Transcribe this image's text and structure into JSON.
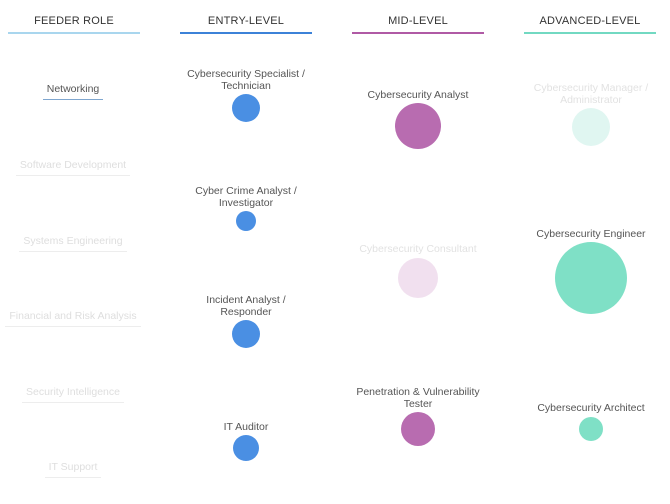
{
  "columns": [
    {
      "title": "FEEDER ROLE",
      "color": "#a9d6ee"
    },
    {
      "title": "ENTRY-LEVEL",
      "color": "#3c82d8"
    },
    {
      "title": "MID-LEVEL",
      "color": "#b05aa5"
    },
    {
      "title": "ADVANCED-LEVEL",
      "color": "#72d9c2"
    }
  ],
  "feeder_roles": [
    {
      "label": "Networking",
      "active": true
    },
    {
      "label": "Software Development",
      "active": false
    },
    {
      "label": "Systems Engineering",
      "active": false
    },
    {
      "label": "Financial and Risk Analysis",
      "active": false
    },
    {
      "label": "Security Intelligence",
      "active": false
    },
    {
      "label": "IT Support",
      "active": false
    }
  ],
  "entry_level": [
    {
      "line1": "Cybersecurity Specialist /",
      "line2": "Technician",
      "color": "#4a8fe3"
    },
    {
      "line1": "Cyber Crime Analyst /",
      "line2": "Investigator",
      "color": "#4a8fe3"
    },
    {
      "line1": "Incident Analyst /",
      "line2": "Responder",
      "color": "#4a8fe3"
    },
    {
      "line1": "IT Auditor",
      "line2": "",
      "color": "#4a8fe3"
    }
  ],
  "mid_level": [
    {
      "line1": "Cybersecurity Analyst",
      "line2": "",
      "color": "#b86cb0",
      "faded": false
    },
    {
      "line1": "Cybersecurity Consultant",
      "line2": "",
      "color": "#f1e0ef",
      "faded": true
    },
    {
      "line1": "Penetration & Vulnerability",
      "line2": "Tester",
      "color": "#b86cb0",
      "faded": false
    }
  ],
  "advanced_level": [
    {
      "line1": "Cybersecurity Manager /",
      "line2": "Administrator",
      "color": "#e0f6f1",
      "faded": true
    },
    {
      "line1": "Cybersecurity Engineer",
      "line2": "",
      "color": "#7fe0c6",
      "faded": false
    },
    {
      "line1": "Cybersecurity Architect",
      "line2": "",
      "color": "#7fe0c6",
      "faded": false
    }
  ]
}
